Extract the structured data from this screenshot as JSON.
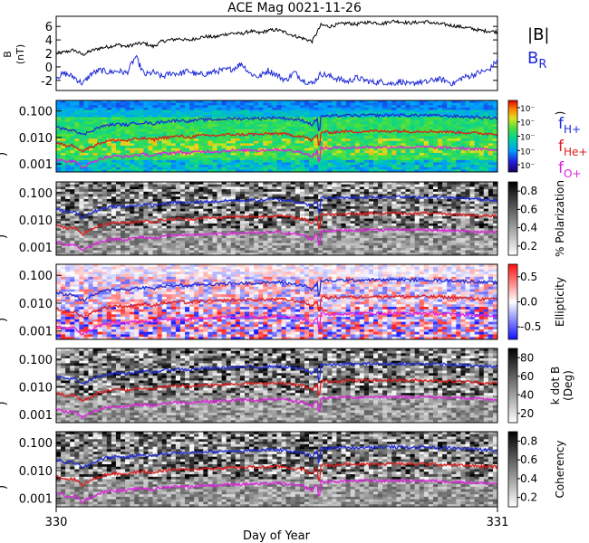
{
  "title": "ACE Mag 0021-11-26",
  "xaxis": {
    "label": "Day of Year",
    "ticks": [
      "330",
      "331"
    ],
    "range": [
      330,
      331
    ]
  },
  "legend": {
    "mag": [
      {
        "label": "|B|",
        "color": "#000000"
      },
      {
        "label": "B",
        "sub": "R",
        "color": "#1f2bd6"
      }
    ],
    "gyro": [
      {
        "label": "f",
        "sub": "H+",
        "color": "#1f2bd6"
      },
      {
        "label": "f",
        "sub": "He+",
        "color": "#e01b1b"
      },
      {
        "label": "f",
        "sub": "O+",
        "color": "#e020e0"
      }
    ]
  },
  "panels": [
    {
      "type": "line",
      "ylabel": "B (nT)",
      "ylabel_lines": [
        "B",
        "(nT)"
      ],
      "yticks": [
        "6",
        "4",
        "2",
        "0",
        "-2"
      ],
      "yrange": [
        -3.5,
        7.5
      ]
    },
    {
      "type": "heatmap",
      "colormap": "rainbow",
      "ylabel": "Hz",
      "ylabel_visible": ")",
      "yticks": [
        "0.100",
        "0.010",
        "0.001"
      ],
      "colorbar": {
        "ticks": [
          "10⁻",
          "10⁻",
          "10⁻",
          "10⁻",
          "10⁻"
        ],
        "label": ")"
      }
    },
    {
      "type": "heatmap",
      "colormap": "gray",
      "ylabel": ")",
      "yticks": [
        "0.100",
        "0.010",
        "0.001"
      ],
      "colorbar": {
        "ticks": [
          "0.8",
          "0.6",
          "0.4",
          "0.2"
        ],
        "label": "% Polarization"
      }
    },
    {
      "type": "heatmap",
      "colormap": "bwr",
      "ylabel": ")",
      "yticks": [
        "0.100",
        "0.010",
        "0.001"
      ],
      "colorbar": {
        "ticks": [
          "0.5",
          "0.0",
          "-0.5"
        ],
        "label": "Ellipticity"
      }
    },
    {
      "type": "heatmap",
      "colormap": "gray",
      "ylabel": ")",
      "yticks": [
        "0.100",
        "0.010",
        "0.001"
      ],
      "colorbar": {
        "ticks": [
          "80",
          "60",
          "40",
          "20"
        ],
        "label": "k dot B (Deg)",
        "label_lines": [
          "k dot B",
          "(Deg)"
        ]
      }
    },
    {
      "type": "heatmap",
      "colormap": "gray",
      "ylabel": ")",
      "yticks": [
        "0.100",
        "0.010",
        "0.001"
      ],
      "colorbar": {
        "ticks": [
          "0.8",
          "0.6",
          "0.4",
          "0.2"
        ],
        "label": "Coherency"
      }
    }
  ],
  "chart_data": {
    "type": "line",
    "title": "ACE Mag 0021-11-26",
    "xlabel": "Day of Year",
    "xlim": [
      330,
      331
    ],
    "series_B": [
      {
        "name": "|B|",
        "color": "#000000",
        "x": [
          330.0,
          330.02,
          330.04,
          330.06,
          330.08,
          330.1,
          330.12,
          330.14,
          330.16,
          330.18,
          330.2,
          330.22,
          330.24,
          330.26,
          330.28,
          330.3,
          330.32,
          330.34,
          330.36,
          330.38,
          330.4,
          330.42,
          330.44,
          330.46,
          330.48,
          330.5,
          330.52,
          330.54,
          330.56,
          330.58,
          330.6,
          330.62,
          330.64,
          330.66,
          330.68,
          330.7,
          330.72,
          330.74,
          330.76,
          330.78,
          330.8,
          330.82,
          330.84,
          330.86,
          330.88,
          330.9,
          330.92,
          330.94,
          330.96,
          330.98,
          331.0
        ],
        "y": [
          2.0,
          2.2,
          2.5,
          1.8,
          2.4,
          2.8,
          3.0,
          3.3,
          3.0,
          3.4,
          3.5,
          3.0,
          3.8,
          4.0,
          4.2,
          3.9,
          4.3,
          4.5,
          4.4,
          4.8,
          5.0,
          4.9,
          5.3,
          5.0,
          5.4,
          5.5,
          5.1,
          4.6,
          4.2,
          3.8,
          6.2,
          6.0,
          6.3,
          6.5,
          6.3,
          6.6,
          6.6,
          6.4,
          6.8,
          6.7,
          6.5,
          6.6,
          6.7,
          6.4,
          6.3,
          6.1,
          5.9,
          5.7,
          5.4,
          5.3,
          5.2
        ]
      },
      {
        "name": "B_R",
        "color": "#1f2bd6",
        "x": [
          330.0,
          330.02,
          330.04,
          330.06,
          330.08,
          330.1,
          330.12,
          330.14,
          330.16,
          330.18,
          330.2,
          330.22,
          330.24,
          330.26,
          330.28,
          330.3,
          330.32,
          330.34,
          330.36,
          330.38,
          330.4,
          330.42,
          330.44,
          330.46,
          330.48,
          330.5,
          330.52,
          330.54,
          330.56,
          330.58,
          330.6,
          330.62,
          330.64,
          330.66,
          330.68,
          330.7,
          330.72,
          330.74,
          330.76,
          330.78,
          330.8,
          330.82,
          330.84,
          330.86,
          330.88,
          330.9,
          330.92,
          330.94,
          330.96,
          330.98,
          331.0
        ],
        "y": [
          -1.5,
          -1.0,
          -1.5,
          -2.5,
          -1.0,
          -0.5,
          -0.8,
          -0.6,
          -0.9,
          1.5,
          -1.2,
          -0.8,
          -1.5,
          -0.9,
          -1.0,
          -0.6,
          -1.2,
          -1.0,
          -0.7,
          -0.5,
          -0.3,
          0.5,
          -1.0,
          -1.5,
          -0.5,
          -1.2,
          -2.0,
          -0.8,
          -2.0,
          -2.5,
          -1.0,
          -1.4,
          -1.8,
          -2.2,
          -1.6,
          -2.0,
          -2.3,
          -2.2,
          -2.5,
          -2.1,
          -2.7,
          -2.2,
          -2.3,
          -1.8,
          -2.0,
          -2.5,
          -1.6,
          -1.3,
          -0.8,
          -0.5,
          1.0
        ]
      }
    ],
    "series_gyro": [
      {
        "name": "f_H+",
        "color": "#1f2bd6",
        "x": [
          330.0,
          330.02,
          330.04,
          330.06,
          330.08,
          330.1,
          330.12,
          330.14,
          330.16,
          330.18,
          330.2,
          330.22,
          330.24,
          330.26,
          330.28,
          330.3,
          330.32,
          330.34,
          330.36,
          330.38,
          330.4,
          330.42,
          330.44,
          330.46,
          330.48,
          330.5,
          330.52,
          330.54,
          330.56,
          330.58,
          330.6,
          330.62,
          330.64,
          330.66,
          330.68,
          330.7,
          330.72,
          330.74,
          330.76,
          330.78,
          330.8,
          330.82,
          330.84,
          330.86,
          330.88,
          330.9,
          330.92,
          330.94,
          330.96,
          330.98,
          331.0
        ],
        "y": [
          0.025,
          0.02,
          0.02,
          0.012,
          0.018,
          0.025,
          0.03,
          0.032,
          0.03,
          0.035,
          0.037,
          0.033,
          0.04,
          0.042,
          0.045,
          0.041,
          0.046,
          0.048,
          0.047,
          0.05,
          0.052,
          0.051,
          0.054,
          0.052,
          0.055,
          0.057,
          0.053,
          0.048,
          0.044,
          0.03,
          0.065,
          0.063,
          0.066,
          0.068,
          0.066,
          0.069,
          0.07,
          0.068,
          0.071,
          0.07,
          0.068,
          0.069,
          0.07,
          0.067,
          0.066,
          0.064,
          0.062,
          0.06,
          0.057,
          0.056,
          0.055
        ]
      }
    ],
    "gyro_ratios": {
      "f_He+": 0.25,
      "f_O+": 0.0625
    }
  }
}
